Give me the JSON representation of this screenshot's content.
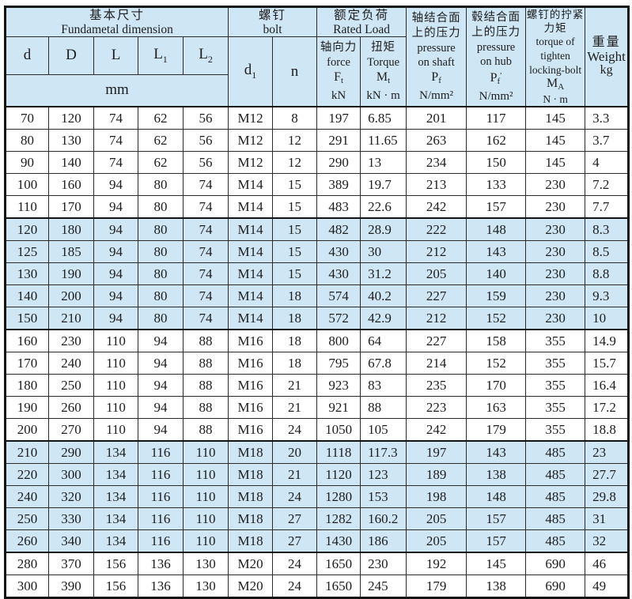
{
  "table": {
    "header": {
      "dim_group": {
        "zh": "基本尺寸",
        "en": "Fundametal dimension"
      },
      "bolt_group": {
        "zh": "螺钉",
        "en": "bolt"
      },
      "load_group": {
        "zh": "额定负荷",
        "en": "Rated Load"
      },
      "unit_mm": "mm",
      "col_d": "d",
      "col_D": "D",
      "col_L": "L",
      "col_L1": {
        "base": "L",
        "sub": "1"
      },
      "col_L2": {
        "base": "L",
        "sub": "2"
      },
      "col_d1": {
        "base": "d",
        "sub": "1"
      },
      "col_n": "n",
      "force": {
        "zh": "轴向力",
        "en": "force",
        "sym": "F",
        "sub": "t",
        "unit": "kN"
      },
      "torque": {
        "zh": "扭矩",
        "en": "Torque",
        "sym": "M",
        "sub": "t",
        "unit": "kN · m"
      },
      "pressure_shaft": {
        "zh1": "轴结合面",
        "zh2": "上的压力",
        "en1": "pressure",
        "en2": "on shaft",
        "sym": "P",
        "sub": "f",
        "unit": "N/mm²"
      },
      "pressure_hub": {
        "zh1": "毂结合面",
        "zh2": "上的压力",
        "en1": "pressure",
        "en2": "on hub",
        "sym": "P",
        "sub": "f",
        "prime": "′",
        "unit": "N/mm²"
      },
      "tighten": {
        "zh1": "螺钉的拧紧",
        "zh2": "力矩",
        "en1": "torque of",
        "en2": "tighten",
        "en3": "locking-bolt",
        "sym": "M",
        "sub": "A",
        "unit": "N · m"
      },
      "weight": {
        "zh": "重量",
        "en": "Weight",
        "unit": "kg"
      }
    },
    "column_ids": [
      "d",
      "D",
      "L",
      "L1",
      "L2",
      "d1",
      "n",
      "Ft",
      "Mt",
      "Pf",
      "Pf-prime",
      "MA",
      "weight"
    ],
    "row_groups": [
      {
        "shaded": false,
        "size": 5
      },
      {
        "shaded": true,
        "size": 5
      },
      {
        "shaded": false,
        "size": 5
      },
      {
        "shaded": true,
        "size": 5
      },
      {
        "shaded": false,
        "size": 2
      }
    ],
    "rows": [
      [
        "70",
        "120",
        "74",
        "62",
        "56",
        "M12",
        "8",
        "197",
        "6.85",
        "201",
        "117",
        "145",
        "3.3"
      ],
      [
        "80",
        "130",
        "74",
        "62",
        "56",
        "M12",
        "12",
        "291",
        "11.65",
        "263",
        "162",
        "145",
        "3.7"
      ],
      [
        "90",
        "140",
        "74",
        "62",
        "56",
        "M12",
        "12",
        "290",
        "13",
        "234",
        "150",
        "145",
        "4"
      ],
      [
        "100",
        "160",
        "94",
        "80",
        "74",
        "M14",
        "15",
        "389",
        "19.7",
        "213",
        "133",
        "230",
        "7.2"
      ],
      [
        "110",
        "170",
        "94",
        "80",
        "74",
        "M14",
        "15",
        "483",
        "22.6",
        "242",
        "157",
        "230",
        "7.7"
      ],
      [
        "120",
        "180",
        "94",
        "80",
        "74",
        "M14",
        "15",
        "482",
        "28.9",
        "222",
        "148",
        "230",
        "8.3"
      ],
      [
        "125",
        "185",
        "94",
        "80",
        "74",
        "M14",
        "15",
        "430",
        "30",
        "212",
        "143",
        "230",
        "8.5"
      ],
      [
        "130",
        "190",
        "94",
        "80",
        "74",
        "M14",
        "15",
        "430",
        "31.2",
        "205",
        "140",
        "230",
        "8.8"
      ],
      [
        "140",
        "200",
        "94",
        "80",
        "74",
        "M14",
        "18",
        "574",
        "40.2",
        "227",
        "159",
        "230",
        "9.3"
      ],
      [
        "150",
        "210",
        "94",
        "80",
        "74",
        "M14",
        "18",
        "572",
        "42.9",
        "212",
        "152",
        "230",
        "10"
      ],
      [
        "160",
        "230",
        "110",
        "94",
        "88",
        "M16",
        "18",
        "800",
        "64",
        "227",
        "158",
        "355",
        "14.9"
      ],
      [
        "170",
        "240",
        "110",
        "94",
        "88",
        "M16",
        "18",
        "795",
        "67.8",
        "214",
        "152",
        "355",
        "15.7"
      ],
      [
        "180",
        "250",
        "110",
        "94",
        "88",
        "M16",
        "21",
        "923",
        "83",
        "235",
        "170",
        "355",
        "16.4"
      ],
      [
        "190",
        "260",
        "110",
        "94",
        "88",
        "M16",
        "21",
        "921",
        "88",
        "223",
        "163",
        "355",
        "17.2"
      ],
      [
        "200",
        "270",
        "110",
        "94",
        "88",
        "M16",
        "24",
        "1050",
        "105",
        "242",
        "179",
        "355",
        "18.8"
      ],
      [
        "210",
        "290",
        "134",
        "116",
        "110",
        "M18",
        "20",
        "1118",
        "117.3",
        "197",
        "143",
        "485",
        "23"
      ],
      [
        "220",
        "300",
        "134",
        "116",
        "110",
        "M18",
        "21",
        "1120",
        "123",
        "189",
        "138",
        "485",
        "27.7"
      ],
      [
        "240",
        "320",
        "134",
        "116",
        "110",
        "M18",
        "24",
        "1280",
        "153",
        "198",
        "148",
        "485",
        "29.8"
      ],
      [
        "250",
        "330",
        "134",
        "116",
        "110",
        "M18",
        "27",
        "1282",
        "160.2",
        "205",
        "157",
        "485",
        "31"
      ],
      [
        "260",
        "340",
        "134",
        "116",
        "110",
        "M18",
        "27",
        "1430",
        "186",
        "205",
        "157",
        "485",
        "32"
      ],
      [
        "280",
        "370",
        "156",
        "136",
        "130",
        "M20",
        "24",
        "1650",
        "230",
        "192",
        "145",
        "690",
        "46"
      ],
      [
        "300",
        "390",
        "156",
        "136",
        "130",
        "M20",
        "24",
        "1650",
        "245",
        "179",
        "138",
        "690",
        "49"
      ]
    ]
  },
  "colors": {
    "shade": "#cfe7f5",
    "border": "#2b2b2b",
    "heavy_border": "#141414",
    "background": "#ffffff"
  }
}
